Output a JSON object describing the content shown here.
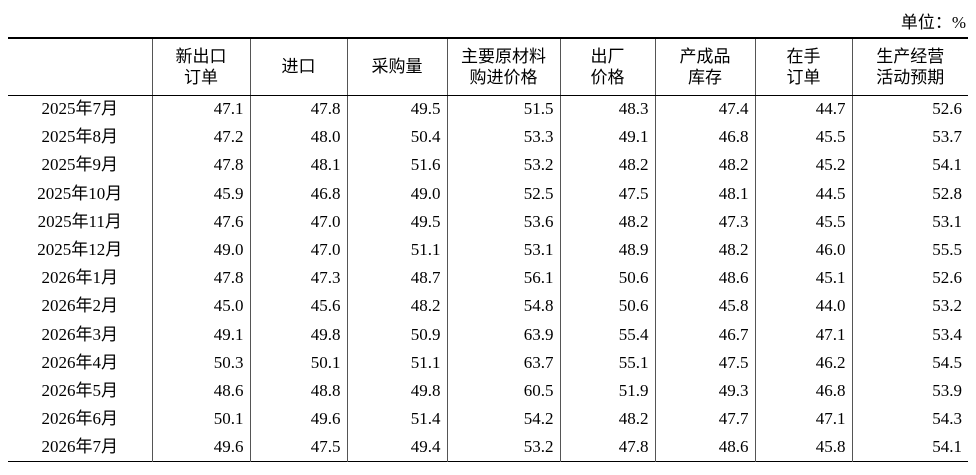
{
  "unit": "单位：%",
  "table": {
    "header": [
      [],
      [
        "新出口",
        "订单"
      ],
      [
        "进口"
      ],
      [
        "采购量"
      ],
      [
        "主要原材料",
        "购进价格"
      ],
      [
        "出厂",
        "价格"
      ],
      [
        "产成品",
        "库存"
      ],
      [
        "在手",
        "订单"
      ],
      [
        "生产经营",
        "活动预期"
      ]
    ],
    "rows": [
      [
        "2025年7月",
        "47.1",
        "47.8",
        "49.5",
        "51.5",
        "48.3",
        "47.4",
        "44.7",
        "52.6"
      ],
      [
        "2025年8月",
        "47.2",
        "48.0",
        "50.4",
        "53.3",
        "49.1",
        "46.8",
        "45.5",
        "53.7"
      ],
      [
        "2025年9月",
        "47.8",
        "48.1",
        "51.6",
        "53.2",
        "48.2",
        "48.2",
        "45.2",
        "54.1"
      ],
      [
        "2025年10月",
        "45.9",
        "46.8",
        "49.0",
        "52.5",
        "47.5",
        "48.1",
        "44.5",
        "52.8"
      ],
      [
        "2025年11月",
        "47.6",
        "47.0",
        "49.5",
        "53.6",
        "48.2",
        "47.3",
        "45.5",
        "53.1"
      ],
      [
        "2025年12月",
        "49.0",
        "47.0",
        "51.1",
        "53.1",
        "48.9",
        "48.2",
        "46.0",
        "55.5"
      ],
      [
        "2026年1月",
        "47.8",
        "47.3",
        "48.7",
        "56.1",
        "50.6",
        "48.6",
        "45.1",
        "52.6"
      ],
      [
        "2026年2月",
        "45.0",
        "45.6",
        "48.2",
        "54.8",
        "50.6",
        "45.8",
        "44.0",
        "53.2"
      ],
      [
        "2026年3月",
        "49.1",
        "49.8",
        "50.9",
        "63.9",
        "55.4",
        "46.7",
        "47.1",
        "53.4"
      ],
      [
        "2026年4月",
        "50.3",
        "50.1",
        "51.1",
        "63.7",
        "55.1",
        "47.5",
        "46.2",
        "54.5"
      ],
      [
        "2026年5月",
        "48.6",
        "48.8",
        "49.8",
        "60.5",
        "51.9",
        "49.3",
        "46.8",
        "53.9"
      ],
      [
        "2026年6月",
        "50.1",
        "49.6",
        "51.4",
        "54.2",
        "48.2",
        "47.7",
        "47.1",
        "54.3"
      ],
      [
        "2026年7月",
        "49.6",
        "47.5",
        "49.4",
        "53.2",
        "47.8",
        "48.6",
        "45.8",
        "54.1"
      ]
    ]
  }
}
